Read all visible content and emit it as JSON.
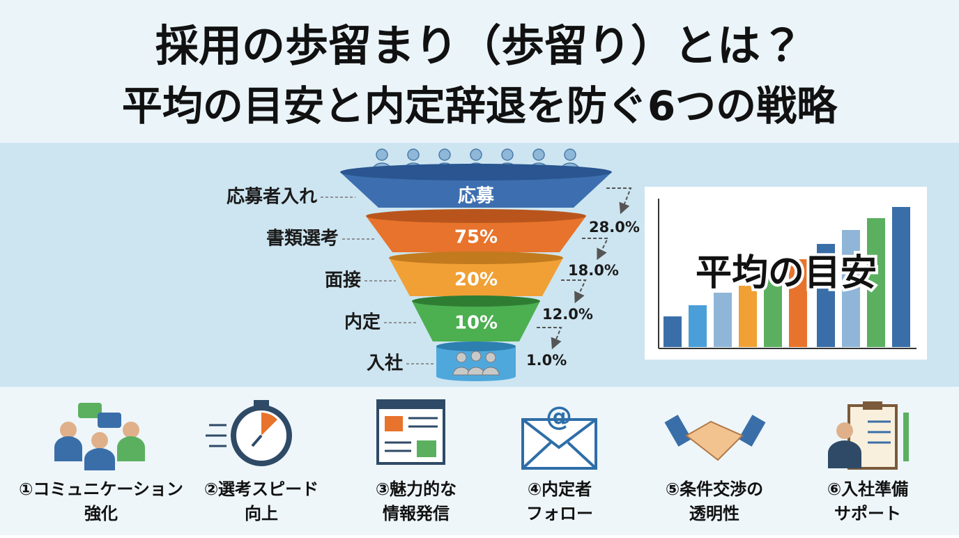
{
  "title": [
    "採用の歩留まり（歩留り）とは？",
    "平均の目安と内定辞退を防ぐ6つの戦略"
  ],
  "funnel": {
    "stages": [
      {
        "label": "応募者入れ",
        "inner": "応募"
      },
      {
        "label": "書類選考",
        "inner": "75%"
      },
      {
        "label": "面接",
        "inner": "20%"
      },
      {
        "label": "内定",
        "inner": "10%"
      },
      {
        "label": "入社"
      }
    ],
    "rates": [
      "28.0%",
      "18.0%",
      "12.0%",
      "1.0%"
    ]
  },
  "benchmark": {
    "title": "平均の目安"
  },
  "strategies": [
    {
      "lines": [
        "①コミュニケーション",
        "強化"
      ]
    },
    {
      "lines": [
        "②選考スピード",
        "向上"
      ]
    },
    {
      "lines": [
        "③魅力的な",
        "情報発信"
      ]
    },
    {
      "lines": [
        "④内定者",
        "フォロー"
      ]
    },
    {
      "lines": [
        "⑤条件交渉の",
        "透明性"
      ]
    },
    {
      "lines": [
        "⑥入社準備",
        "サポート"
      ]
    }
  ]
}
